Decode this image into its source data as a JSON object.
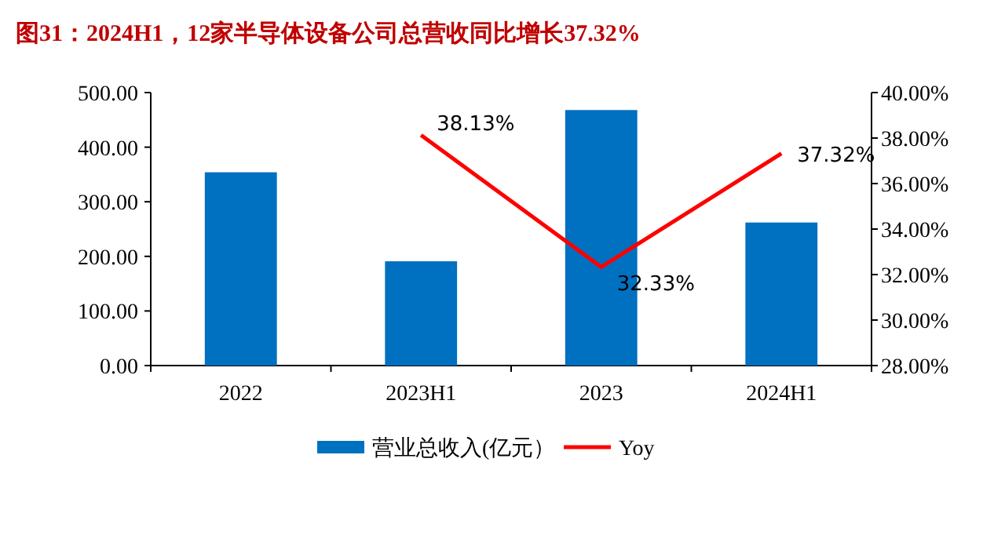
{
  "chart_data": {
    "type": "bar",
    "title": "图31：2024H1，12家半导体设备公司总营收同比增长37.32%",
    "categories": [
      "2022",
      "2023H1",
      "2023",
      "2024H1"
    ],
    "series": [
      {
        "name": "营业总收入(亿元）",
        "color": "#0070c0",
        "values": [
          354,
          191,
          468,
          262
        ]
      },
      {
        "name": "Yoy",
        "type": "line",
        "axis": "y2",
        "color": "#ff0000",
        "values": [
          null,
          38.13,
          32.33,
          37.32
        ],
        "value_labels": [
          null,
          "38.13%",
          "32.33%",
          "37.32%"
        ],
        "marker": "none"
      }
    ],
    "ylim": [
      0,
      500
    ],
    "yticks": [
      {
        "value": 0,
        "label": "0.00"
      },
      {
        "value": 100,
        "label": "100.00"
      },
      {
        "value": 200,
        "label": "200.00"
      },
      {
        "value": 300,
        "label": "300.00"
      },
      {
        "value": 400,
        "label": "400.00"
      },
      {
        "value": 500,
        "label": "500.00"
      }
    ],
    "y2lim": [
      28,
      40
    ],
    "y2ticks": [
      {
        "value": 28,
        "label": "28.00%"
      },
      {
        "value": 30,
        "label": "30.00%"
      },
      {
        "value": 32,
        "label": "32.00%"
      },
      {
        "value": 34,
        "label": "34.00%"
      },
      {
        "value": 36,
        "label": "36.00%"
      },
      {
        "value": 38,
        "label": "38.00%"
      },
      {
        "value": 40,
        "label": "40.00%"
      }
    ],
    "grid": false,
    "legend": "bottom"
  }
}
